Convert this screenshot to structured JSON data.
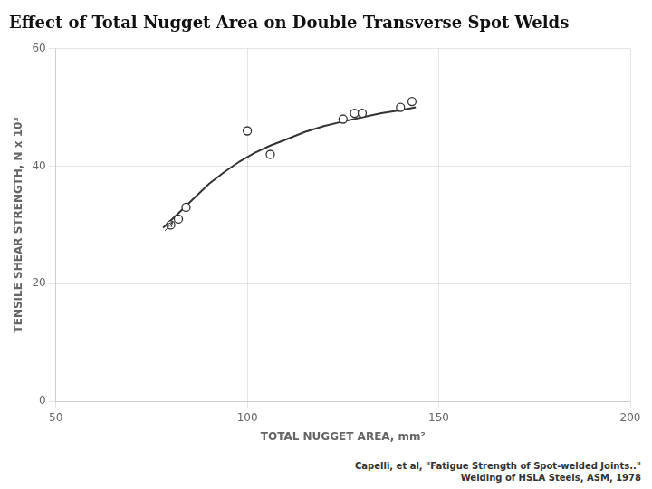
{
  "chart_data": {
    "type": "scatter",
    "title": "Effect of Total Nugget Area on Double Transverse Spot Welds",
    "xlabel": "TOTAL NUGGET AREA, mm²",
    "ylabel": "TENSILE SHEAR STRENGTH, N x 10³",
    "xlim": [
      50,
      200
    ],
    "ylim": [
      0,
      60
    ],
    "xticks": [
      50,
      100,
      150,
      200
    ],
    "yticks": [
      0,
      20,
      40,
      60
    ],
    "grid": true,
    "series": [
      {
        "type": "line",
        "color": "#333333",
        "x": [
          78,
          82,
          86,
          90,
          94,
          98,
          102,
          106,
          110,
          115,
          120,
          125,
          130,
          135,
          140,
          144
        ],
        "values": [
          29.5,
          32.0,
          34.5,
          37.0,
          39.0,
          40.8,
          42.3,
          43.5,
          44.5,
          45.8,
          46.8,
          47.6,
          48.3,
          49.0,
          49.5,
          50.0
        ]
      },
      {
        "type": "scatter",
        "marker": "circle",
        "color": "#333333",
        "x": [
          80,
          82,
          84,
          100,
          106,
          125,
          128,
          130,
          140,
          143
        ],
        "values": [
          30,
          31,
          33,
          46,
          42,
          48,
          49,
          49,
          50,
          51
        ]
      }
    ],
    "arrows": [
      {
        "x_start": 78.5,
        "y_start": 29.0,
        "x_end": 80.5,
        "y_end": 30.5
      }
    ],
    "annotations": [
      "Capelli, et al, \"Fatigue Strength of Spot-welded Joints..\"",
      "Welding of HSLA Steels, ASM, 1978"
    ]
  }
}
